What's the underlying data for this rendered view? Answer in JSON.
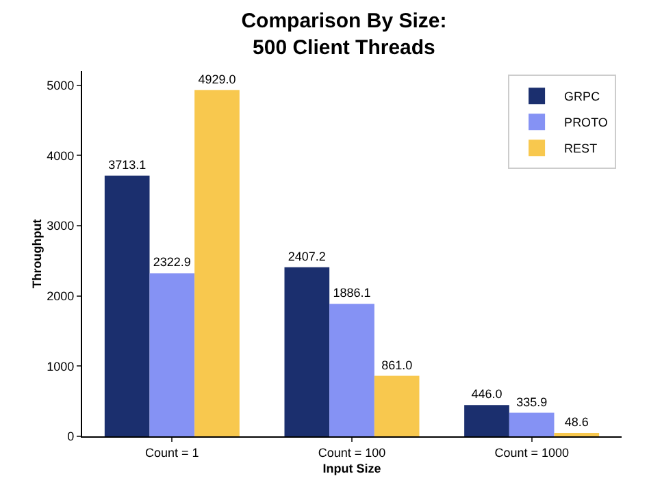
{
  "chart_data": {
    "type": "bar",
    "title": "Comparison By Size:\n500 Client Threads",
    "xlabel": "Input Size",
    "ylabel": "Throughput",
    "categories": [
      "Count = 1",
      "Count = 100",
      "Count = 1000"
    ],
    "series": [
      {
        "name": "GRPC",
        "color": "#1b2f6e",
        "values": [
          3713.1,
          2407.2,
          446.0
        ],
        "value_labels": [
          "3713.1",
          "2407.2",
          "446.0"
        ]
      },
      {
        "name": "PROTO",
        "color": "#8592f4",
        "values": [
          2322.9,
          1886.1,
          335.9
        ],
        "value_labels": [
          "2322.9",
          "1886.1",
          "335.9"
        ]
      },
      {
        "name": "REST",
        "color": "#f8c84e",
        "values": [
          4929.0,
          861.0,
          48.6
        ],
        "value_labels": [
          "4929.0",
          "861.0",
          "48.6"
        ]
      }
    ],
    "ylim": [
      0,
      5200
    ],
    "yticks": [
      0,
      1000,
      2000,
      3000,
      4000,
      5000
    ],
    "grid": false,
    "legend": "top right"
  }
}
